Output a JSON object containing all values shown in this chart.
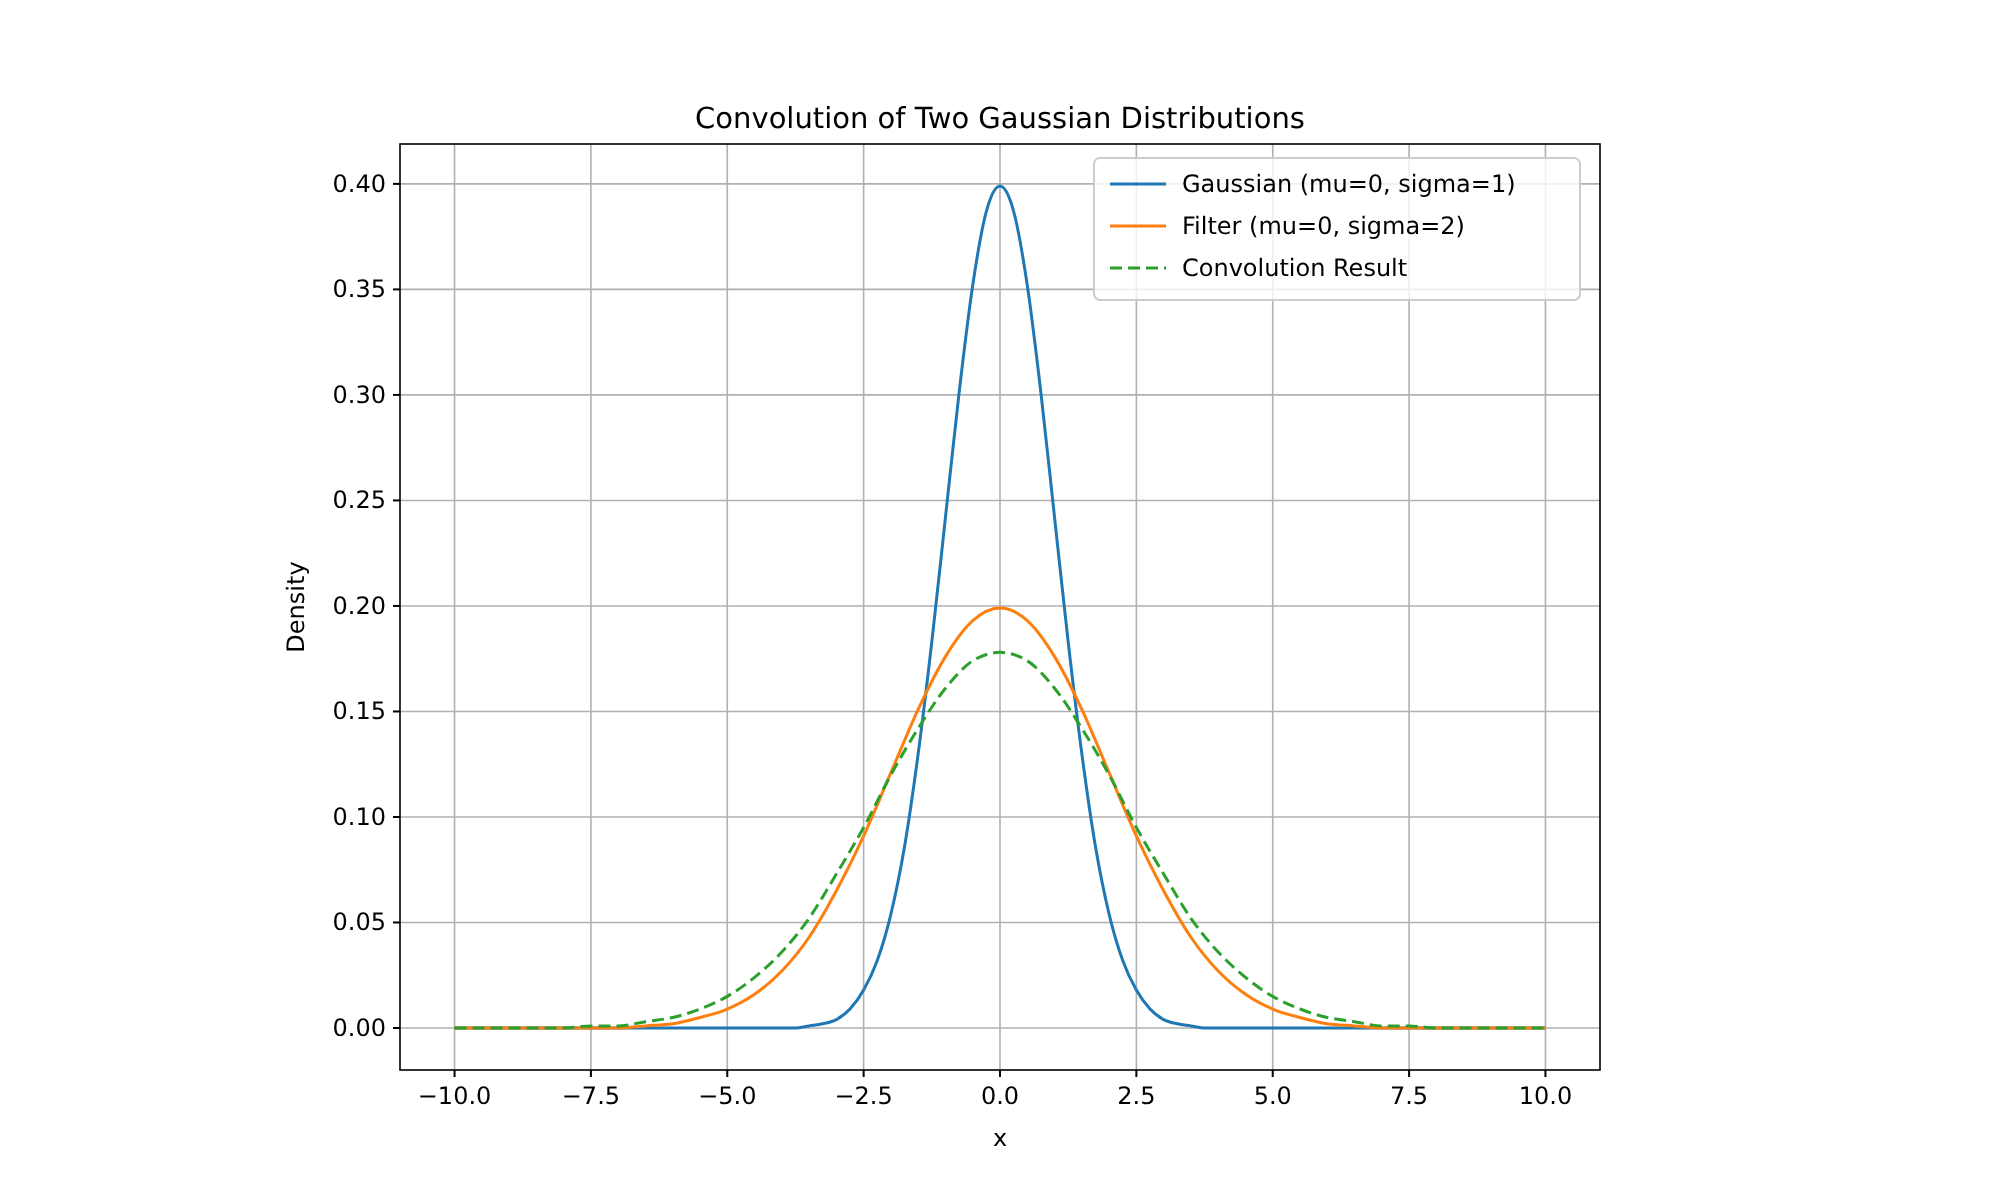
{
  "chart_data": {
    "type": "line",
    "title": "Convolution of Two Gaussian Distributions",
    "xlabel": "x",
    "ylabel": "Density",
    "xlim": [
      -11,
      11
    ],
    "ylim": [
      -0.0199,
      0.4189
    ],
    "xticks": [
      {
        "value": -10,
        "label": "−10.0"
      },
      {
        "value": -7.5,
        "label": "−7.5"
      },
      {
        "value": -5,
        "label": "−5.0"
      },
      {
        "value": -2.5,
        "label": "−2.5"
      },
      {
        "value": 0,
        "label": "0.0"
      },
      {
        "value": 2.5,
        "label": "2.5"
      },
      {
        "value": 5,
        "label": "5.0"
      },
      {
        "value": 7.5,
        "label": "7.5"
      },
      {
        "value": 10,
        "label": "10.0"
      }
    ],
    "yticks": [
      {
        "value": 0,
        "label": "0.00"
      },
      {
        "value": 0.05,
        "label": "0.05"
      },
      {
        "value": 0.1,
        "label": "0.10"
      },
      {
        "value": 0.15,
        "label": "0.15"
      },
      {
        "value": 0.2,
        "label": "0.20"
      },
      {
        "value": 0.25,
        "label": "0.25"
      },
      {
        "value": 0.3,
        "label": "0.30"
      },
      {
        "value": 0.35,
        "label": "0.35"
      },
      {
        "value": 0.4,
        "label": "0.40"
      }
    ],
    "grid": true,
    "legend": "top right",
    "marker": "none",
    "series": [
      {
        "name": "Gaussian (mu=0, sigma=1)",
        "color": "#1f77b4",
        "line_style": "solid",
        "x": [
          -10,
          -4,
          -3.75,
          -3.5,
          -3.25,
          -3,
          -2.75,
          -2.5,
          -2.25,
          -2,
          -1.75,
          -1.5,
          -1.25,
          -1,
          -0.75,
          -0.5,
          -0.25,
          0,
          0.25,
          0.5,
          0.75,
          1,
          1.25,
          1.5,
          1.75,
          2,
          2.25,
          2.5,
          2.75,
          3,
          3.25,
          3.5,
          3.75,
          4,
          10
        ],
        "values": [
          0,
          0,
          0,
          0.001,
          0.002,
          0.004,
          0.009,
          0.018,
          0.032,
          0.054,
          0.086,
          0.13,
          0.183,
          0.242,
          0.301,
          0.352,
          0.387,
          0.399,
          0.387,
          0.352,
          0.301,
          0.242,
          0.183,
          0.13,
          0.086,
          0.054,
          0.032,
          0.018,
          0.009,
          0.004,
          0.002,
          0.001,
          0,
          0,
          0
        ]
      },
      {
        "name": "Filter (mu=0, sigma=2)",
        "color": "#ff7f0e",
        "line_style": "solid",
        "x": [
          -10,
          -9,
          -8,
          -7.5,
          -7,
          -6.5,
          -6,
          -5.5,
          -5,
          -4.5,
          -4,
          -3.5,
          -3,
          -2.5,
          -2,
          -1.5,
          -1,
          -0.5,
          0,
          0.5,
          1,
          1.5,
          2,
          2.5,
          3,
          3.5,
          4,
          4.5,
          5,
          5.5,
          6,
          6.5,
          7,
          7.5,
          8,
          9,
          10
        ],
        "values": [
          0,
          0,
          0,
          0,
          0,
          0.001,
          0.002,
          0.005,
          0.009,
          0.016,
          0.027,
          0.043,
          0.065,
          0.091,
          0.121,
          0.151,
          0.176,
          0.193,
          0.199,
          0.193,
          0.176,
          0.151,
          0.121,
          0.091,
          0.065,
          0.043,
          0.027,
          0.016,
          0.009,
          0.005,
          0.002,
          0.001,
          0,
          0,
          0,
          0,
          0
        ]
      },
      {
        "name": "Convolution Result",
        "color": "#2ca02c",
        "line_style": "dashed",
        "x": [
          -10,
          -9.5,
          -9,
          -8.5,
          -8,
          -7.5,
          -7,
          -6.5,
          -6,
          -5.5,
          -5,
          -4.5,
          -4,
          -3.5,
          -3,
          -2.5,
          -2,
          -1.5,
          -1,
          -0.5,
          0,
          0.5,
          1,
          1.5,
          2,
          2.5,
          3,
          3.5,
          4,
          4.5,
          5,
          5.5,
          6,
          6.5,
          7,
          7.5,
          8,
          8.5,
          9,
          9.5,
          10
        ],
        "values": [
          0,
          0,
          0,
          0,
          0,
          0.001,
          0.001,
          0.003,
          0.005,
          0.009,
          0.015,
          0.024,
          0.036,
          0.052,
          0.073,
          0.095,
          0.12,
          0.142,
          0.161,
          0.174,
          0.178,
          0.174,
          0.161,
          0.142,
          0.12,
          0.095,
          0.073,
          0.052,
          0.036,
          0.024,
          0.015,
          0.009,
          0.005,
          0.003,
          0.001,
          0.001,
          0,
          0,
          0,
          0,
          0
        ]
      }
    ]
  }
}
